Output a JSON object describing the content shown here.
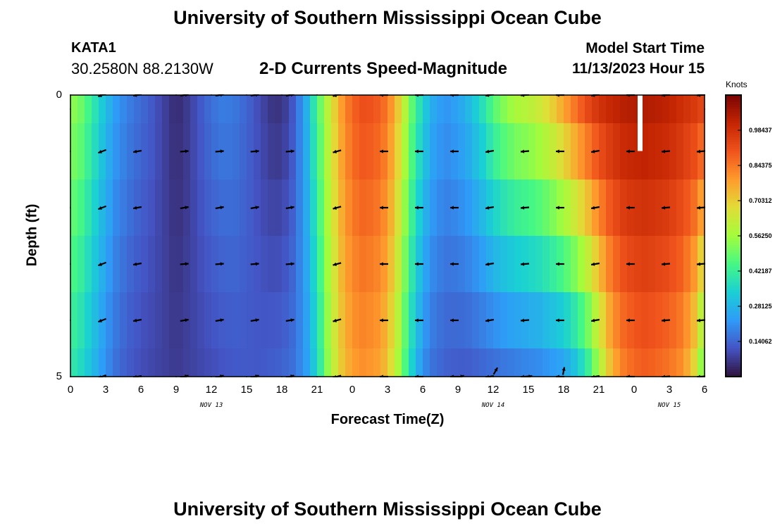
{
  "header": {
    "title": "University of Southern Mississippi Ocean Cube",
    "station_id": "KATA1",
    "coordinates": "30.2580N  88.2130W",
    "subtitle": "2-D Currents Speed-Magnitude",
    "model_start_label": "Model Start Time",
    "model_start_value": "11/13/2023 Hour 15"
  },
  "footer": {
    "title": "University of Southern Mississippi Ocean Cube"
  },
  "colors": {
    "colormap": [
      "#30123b",
      "#4454c4",
      "#2f9bf8",
      "#1ad0d4",
      "#46f884",
      "#a4fc3c",
      "#e1dd37",
      "#fe9b2d",
      "#f0531c",
      "#c42503",
      "#7a0403"
    ],
    "arrow": "#000000",
    "frame": "#000000"
  },
  "chart_data": {
    "type": "heatmap",
    "title": "2-D Currents Speed-Magnitude",
    "xlabel": "Forecast Time(Z)",
    "ylabel": "Depth (ft)",
    "x_tick_labels": [
      "0",
      "3",
      "6",
      "9",
      "12",
      "15",
      "18",
      "21",
      "0",
      "3",
      "6",
      "9",
      "12",
      "15",
      "18",
      "21",
      "0",
      "3",
      "6"
    ],
    "x_range_hours": [
      0,
      54
    ],
    "date_labels": [
      {
        "text": "NOV 13",
        "hour": 12
      },
      {
        "text": "NOV 14",
        "hour": 36
      },
      {
        "text": "NOV 15",
        "hour": 51
      }
    ],
    "y_tick_labels": [
      "0",
      "5"
    ],
    "y_range_ft": [
      0,
      5
    ],
    "depth_levels_ft": [
      0.25,
      1.0,
      2.0,
      3.0,
      4.0,
      5.0
    ],
    "colorbar": {
      "title": "Knots",
      "ticks": [
        "0.98437",
        "0.84375",
        "0.70312",
        "0.56250",
        "0.42187",
        "0.28125",
        "0.14062"
      ],
      "tick_values": [
        0.98437,
        0.84375,
        0.70312,
        0.5625,
        0.42187,
        0.28125,
        0.14062
      ],
      "range": [
        0.0,
        1.125
      ]
    },
    "speed_profile_knots": {
      "hours": [
        0,
        1,
        2,
        3,
        4,
        5,
        6,
        7,
        8,
        9,
        10,
        11,
        12,
        13,
        14,
        15,
        16,
        17,
        18,
        19,
        20,
        21,
        22,
        23,
        24,
        25,
        26,
        27,
        28,
        29,
        30,
        31,
        32,
        33,
        34,
        35,
        36,
        37,
        38,
        39,
        40,
        41,
        42,
        43,
        44,
        45,
        46,
        47,
        48,
        49,
        50,
        51,
        52,
        53,
        54
      ],
      "surface": [
        0.55,
        0.5,
        0.4,
        0.3,
        0.22,
        0.18,
        0.15,
        0.12,
        0.08,
        0.04,
        0.07,
        0.12,
        0.16,
        0.18,
        0.17,
        0.14,
        0.1,
        0.06,
        0.05,
        0.12,
        0.25,
        0.45,
        0.62,
        0.78,
        0.88,
        0.92,
        0.9,
        0.85,
        0.7,
        0.5,
        0.35,
        0.25,
        0.22,
        0.25,
        0.3,
        0.38,
        0.48,
        0.55,
        0.6,
        0.62,
        0.66,
        0.72,
        0.8,
        0.88,
        0.95,
        1.0,
        1.02,
        1.04,
        1.05,
        1.05,
        1.04,
        1.03,
        1.0,
        0.98,
        0.95
      ],
      "bottom": [
        0.4,
        0.35,
        0.28,
        0.2,
        0.15,
        0.12,
        0.1,
        0.09,
        0.08,
        0.07,
        0.08,
        0.09,
        0.1,
        0.11,
        0.12,
        0.12,
        0.12,
        0.13,
        0.14,
        0.16,
        0.22,
        0.35,
        0.55,
        0.7,
        0.78,
        0.8,
        0.78,
        0.72,
        0.55,
        0.35,
        0.2,
        0.15,
        0.13,
        0.12,
        0.12,
        0.13,
        0.14,
        0.15,
        0.16,
        0.17,
        0.18,
        0.2,
        0.22,
        0.28,
        0.38,
        0.55,
        0.72,
        0.82,
        0.86,
        0.88,
        0.86,
        0.84,
        0.8,
        0.7,
        0.45
      ]
    },
    "missing_data": [
      {
        "hour": 48,
        "depth_ft": 0.25
      }
    ],
    "arrows": {
      "hours": [
        2.7,
        5.7,
        9.7,
        12.7,
        15.7,
        18.7,
        22.7,
        26.7,
        29.7,
        32.7,
        35.7,
        38.7,
        41.7,
        44.7,
        47.7,
        50.7,
        53.7
      ],
      "surface_angles_deg": [
        200,
        190,
        200,
        200,
        195,
        200,
        195,
        180,
        180,
        180,
        190,
        185,
        180,
        190,
        180,
        185,
        185
      ],
      "arrows_bottom": [
        {
          "hour": 33.2,
          "depth_ft": 5.0,
          "angle_deg": 15
        },
        {
          "hour": 36.2,
          "depth_ft": 4.9,
          "angle_deg": 60
        },
        {
          "hour": 39.0,
          "depth_ft": 5.0,
          "angle_deg": 10
        },
        {
          "hour": 42.0,
          "depth_ft": 4.9,
          "angle_deg": 80
        }
      ]
    }
  }
}
